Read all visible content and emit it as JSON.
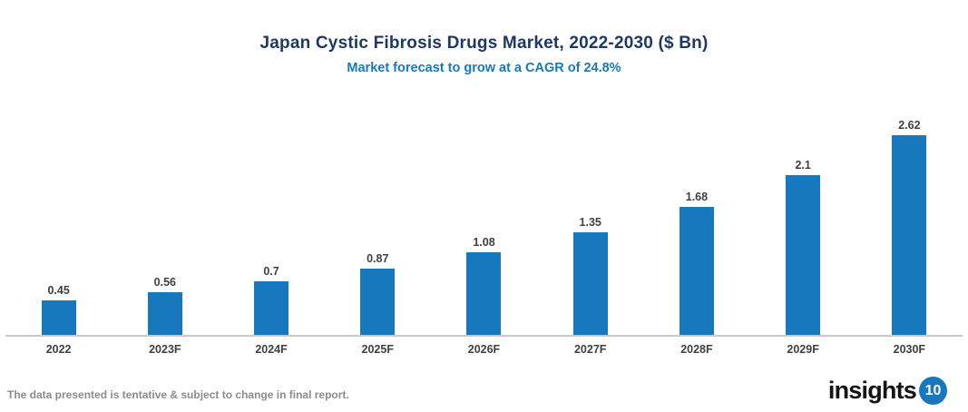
{
  "header": {
    "title": "Japan Cystic Fibrosis Drugs Market, 2022-2030 ($ Bn)",
    "subtitle": "Market forecast to grow at a CAGR of 24.8%"
  },
  "chart_data": {
    "type": "bar",
    "title": "Japan Cystic Fibrosis Drugs Market, 2022-2030 ($ Bn)",
    "subtitle": "Market forecast to grow at a CAGR of 24.8%",
    "categories": [
      "2022",
      "2023F",
      "2024F",
      "2025F",
      "2026F",
      "2027F",
      "2028F",
      "2029F",
      "2030F"
    ],
    "values": [
      0.45,
      0.56,
      0.7,
      0.87,
      1.08,
      1.35,
      1.68,
      2.1,
      2.62
    ],
    "value_labels": [
      "0.45",
      "0.56",
      "0.7",
      "0.87",
      "1.08",
      "1.35",
      "1.68",
      "2.1",
      "2.62"
    ],
    "xlabel": "",
    "ylabel": "",
    "ylim": [
      0,
      3.1
    ],
    "grid": false,
    "legend": "none",
    "bar_color": "#1878be",
    "value_label_color": "#404040",
    "tick_label_color": "#404040",
    "axis_line_color": "#c9c9c9"
  },
  "colors": {
    "title": "#1f3864",
    "subtitle": "#1878be",
    "accent_blue": "#1878be",
    "disclaimer_gray": "#8c8c8c"
  },
  "footer": {
    "disclaimer": "The data presented is tentative & subject to change in final report.",
    "logo": {
      "text": "insights",
      "badge": "10",
      "badge_color": "#1878be"
    }
  }
}
